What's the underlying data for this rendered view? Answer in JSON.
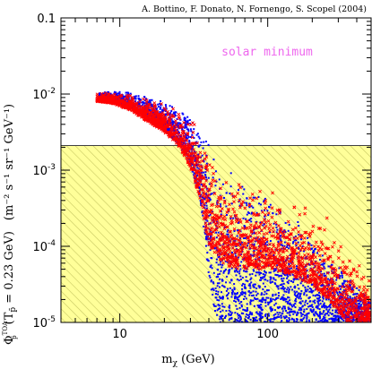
{
  "chart_data": {
    "type": "scatter",
    "credit": "A. Bottino, F. Donato, N. Fornengo, S. Scopel (2004)",
    "annotation": "solar minimum",
    "xlabel": {
      "main": "m",
      "sub": "χ",
      "unit": " (GeV)"
    },
    "ylabel": {
      "main": "Φ",
      "sup": "TOA",
      "sub": "p̄",
      "cond_pre": "(T",
      "cond_sub": "p̄",
      "cond_post": " = 0.23 GeV)",
      "unit": "(m⁻² s⁻¹ sr⁻¹ GeV⁻¹)"
    },
    "xscale": "log",
    "yscale": "log",
    "xlim": [
      4,
      500
    ],
    "ylim": [
      1e-05,
      0.1
    ],
    "x_ticks": [
      {
        "value": 10,
        "label": "10"
      },
      {
        "value": 100,
        "label": "100"
      }
    ],
    "y_ticks": [
      {
        "value": 1e-05,
        "base": "10",
        "exp": "-5"
      },
      {
        "value": 0.0001,
        "base": "10",
        "exp": "-4"
      },
      {
        "value": 0.001,
        "base": "10",
        "exp": "-3"
      },
      {
        "value": 0.01,
        "base": "10",
        "exp": "-2"
      },
      {
        "value": 0.1,
        "base": "0.1",
        "exp": ""
      }
    ],
    "excluded_region": {
      "y_upper": 0.0021,
      "color": "#ffff99",
      "hatch_color": "#c8c864"
    },
    "series": [
      {
        "marker": "dot",
        "color": "#0000ff",
        "envelope": [
          [
            7.2,
            0.0105,
            0.0085
          ],
          [
            9,
            0.0108,
            0.008
          ],
          [
            12,
            0.0105,
            0.0065
          ],
          [
            15,
            0.0095,
            0.0048
          ],
          [
            20,
            0.008,
            0.0033
          ],
          [
            25,
            0.0065,
            0.0022
          ],
          [
            30,
            0.005,
            0.0012
          ],
          [
            35,
            0.0038,
            0.0004
          ],
          [
            40,
            0.0025,
            4e-05
          ],
          [
            45,
            0.0018,
            1e-05
          ],
          [
            55,
            0.0011,
            1e-05
          ],
          [
            70,
            0.0007,
            1e-05
          ],
          [
            90,
            0.0005,
            1e-05
          ],
          [
            120,
            0.00035,
            1e-05
          ],
          [
            160,
            0.00022,
            1e-05
          ],
          [
            220,
            0.00012,
            1e-05
          ],
          [
            300,
            6e-05,
            1e-05
          ],
          [
            400,
            3e-05,
            1e-05
          ],
          [
            500,
            2e-05,
            1e-05
          ]
        ]
      },
      {
        "marker": "cross",
        "color": "#ff0000",
        "envelope": [
          [
            7,
            0.0108,
            0.008
          ],
          [
            9,
            0.0112,
            0.0075
          ],
          [
            12,
            0.0108,
            0.006
          ],
          [
            15,
            0.0098,
            0.0045
          ],
          [
            20,
            0.0085,
            0.0032
          ],
          [
            25,
            0.007,
            0.0021
          ],
          [
            30,
            0.0052,
            0.0011
          ],
          [
            35,
            0.004,
            0.0004
          ],
          [
            40,
            0.0028,
            0.0001
          ],
          [
            50,
            0.0016,
            6e-05
          ],
          [
            60,
            0.0012,
            5e-05
          ],
          [
            80,
            0.0009,
            5e-05
          ],
          [
            110,
            0.0006,
            5e-05
          ],
          [
            150,
            0.00045,
            4e-05
          ],
          [
            200,
            0.00035,
            3e-05
          ],
          [
            260,
            0.00025,
            2e-05
          ],
          [
            330,
            0.00014,
            1e-05
          ],
          [
            420,
            7e-05,
            1e-05
          ],
          [
            500,
            4e-05,
            1e-05
          ]
        ]
      }
    ]
  }
}
